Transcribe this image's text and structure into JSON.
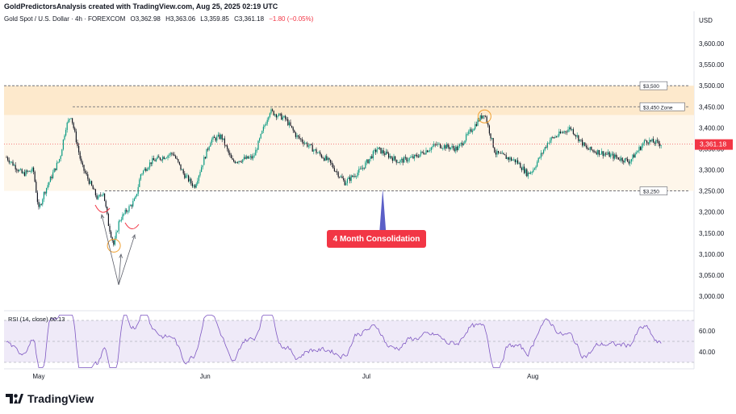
{
  "header": {
    "created_line": "GoldPredictorsAnalysis created with TradingView.com, Aug 25, 2025 02:19 UTC",
    "symbol": "Gold Spot / U.S. Dollar · 4h · FOREXCOM",
    "open": "O3,362.98",
    "high": "H3,363.06",
    "low": "L3,359.85",
    "close": "C3,361.18",
    "change": "−1.80 (−0.05%)"
  },
  "branding": {
    "logo_text": "TradingView",
    "logo_icon": "tradingview-logo-icon"
  },
  "colors": {
    "up": "#089981",
    "down": "#131722",
    "zone_dark": "#fde9cc",
    "zone_light": "#fef6ea",
    "rsi_line": "#7e57c2",
    "rsi_fill": "#efeaf8",
    "label_red": "#f23645",
    "circle": "#f0a030"
  },
  "chart_data": [
    {
      "type": "candlestick",
      "title": "Gold Spot / U.S. Dollar",
      "interval": "4h",
      "currency_label": "USD",
      "ylim": [
        2950,
        3650
      ],
      "y_ticks": [
        3000,
        3050,
        3100,
        3150,
        3200,
        3250,
        3300,
        3350,
        3400,
        3450,
        3500,
        3550,
        3600
      ],
      "y_tick_labels": [
        "3,000.00",
        "3,050.00",
        "3,100.00",
        "3,150.00",
        "3,200.00",
        "3,250.00",
        "3,300.00",
        "3,350.00",
        "3,400.00",
        "3,450.00",
        "3,500.00",
        "3,550.00",
        "3,600.00"
      ],
      "x_labels": [
        "May",
        "Jun",
        "Jul",
        "Aug"
      ],
      "last_price": 3361.18,
      "last_price_label": "3,361.18",
      "price_path": [
        {
          "date": "2025-04-25",
          "price": 3330
        },
        {
          "date": "2025-04-28",
          "price": 3290
        },
        {
          "date": "2025-04-30",
          "price": 3300
        },
        {
          "date": "2025-05-01",
          "price": 3205
        },
        {
          "date": "2025-05-02",
          "price": 3245
        },
        {
          "date": "2025-05-05",
          "price": 3330
        },
        {
          "date": "2025-05-06",
          "price": 3400
        },
        {
          "date": "2025-05-07",
          "price": 3430
        },
        {
          "date": "2025-05-08",
          "price": 3370
        },
        {
          "date": "2025-05-09",
          "price": 3310
        },
        {
          "date": "2025-05-12",
          "price": 3230
        },
        {
          "date": "2025-05-13",
          "price": 3250
        },
        {
          "date": "2025-05-14",
          "price": 3170
        },
        {
          "date": "2025-05-15",
          "price": 3120
        },
        {
          "date": "2025-05-16",
          "price": 3180
        },
        {
          "date": "2025-05-19",
          "price": 3230
        },
        {
          "date": "2025-05-20",
          "price": 3290
        },
        {
          "date": "2025-05-22",
          "price": 3320
        },
        {
          "date": "2025-05-26",
          "price": 3340
        },
        {
          "date": "2025-05-28",
          "price": 3290
        },
        {
          "date": "2025-05-30",
          "price": 3260
        },
        {
          "date": "2025-06-02",
          "price": 3370
        },
        {
          "date": "2025-06-04",
          "price": 3380
        },
        {
          "date": "2025-06-06",
          "price": 3320
        },
        {
          "date": "2025-06-10",
          "price": 3330
        },
        {
          "date": "2025-06-13",
          "price": 3440
        },
        {
          "date": "2025-06-16",
          "price": 3420
        },
        {
          "date": "2025-06-18",
          "price": 3380
        },
        {
          "date": "2025-06-20",
          "price": 3360
        },
        {
          "date": "2025-06-24",
          "price": 3320
        },
        {
          "date": "2025-06-27",
          "price": 3270
        },
        {
          "date": "2025-06-30",
          "price": 3300
        },
        {
          "date": "2025-07-03",
          "price": 3350
        },
        {
          "date": "2025-07-07",
          "price": 3320
        },
        {
          "date": "2025-07-10",
          "price": 3330
        },
        {
          "date": "2025-07-14",
          "price": 3360
        },
        {
          "date": "2025-07-18",
          "price": 3350
        },
        {
          "date": "2025-07-22",
          "price": 3420
        },
        {
          "date": "2025-07-23",
          "price": 3435
        },
        {
          "date": "2025-07-25",
          "price": 3340
        },
        {
          "date": "2025-07-29",
          "price": 3320
        },
        {
          "date": "2025-07-31",
          "price": 3290
        },
        {
          "date": "2025-08-01",
          "price": 3300
        },
        {
          "date": "2025-08-04",
          "price": 3370
        },
        {
          "date": "2025-08-08",
          "price": 3400
        },
        {
          "date": "2025-08-11",
          "price": 3350
        },
        {
          "date": "2025-08-14",
          "price": 3340
        },
        {
          "date": "2025-08-19",
          "price": 3320
        },
        {
          "date": "2025-08-22",
          "price": 3370
        },
        {
          "date": "2025-08-25",
          "price": 3361.18
        }
      ],
      "levels": [
        {
          "label": "$3,500",
          "price": 3500
        },
        {
          "label": "$3,450 Zone",
          "price": 3450
        },
        {
          "label": "$3,250",
          "price": 3250
        }
      ],
      "zone": {
        "top": 3500,
        "upper_mid": 3430,
        "bottom": 3250
      },
      "annotations": [
        {
          "text": "4 Month Consolidation",
          "x_date": "2025-07-03",
          "price": 3255
        }
      ]
    },
    {
      "type": "line",
      "title": "RSI (14, close)",
      "legend": "RSI (14, close)  60.13",
      "last_value": 60.13,
      "ylim": [
        20,
        80
      ],
      "y_ticks": [
        40,
        60
      ],
      "y_tick_labels": [
        "40.00",
        "60.00"
      ],
      "band": [
        30,
        70
      ]
    }
  ]
}
